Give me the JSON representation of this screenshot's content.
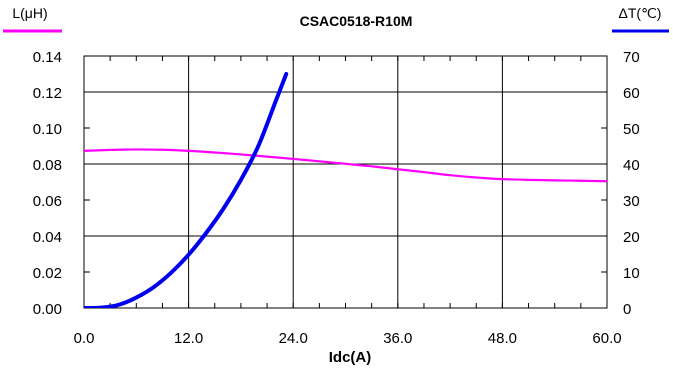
{
  "chart_data": {
    "type": "line",
    "title": "CSAC0518-R10M",
    "xlabel": "Idc(A)",
    "xlim": [
      0,
      60
    ],
    "x_ticks": [
      0,
      12,
      24,
      36,
      48,
      60
    ],
    "x_tick_labels": [
      "0.0",
      "12.0",
      "24.0",
      "36.0",
      "48.0",
      "60.0"
    ],
    "left_axis": {
      "label": "L(μH)",
      "ylim": [
        0,
        0.14
      ],
      "ticks": [
        0,
        0.02,
        0.04,
        0.06,
        0.08,
        0.1,
        0.12,
        0.14
      ],
      "tick_labels": [
        "0.00",
        "0.02",
        "0.04",
        "0.06",
        "0.08",
        "0.10",
        "0.12",
        "0.14"
      ]
    },
    "right_axis": {
      "label": "ΔT(℃)",
      "ylim": [
        0,
        70
      ],
      "ticks": [
        0,
        10,
        20,
        30,
        40,
        50,
        60,
        70
      ],
      "tick_labels": [
        "0",
        "10",
        "20",
        "30",
        "40",
        "50",
        "60",
        "70"
      ]
    },
    "grid": true,
    "series": [
      {
        "name": "L(μH)",
        "axis": "left",
        "color": "#ff00ff",
        "x": [
          0,
          3,
          6,
          9,
          12,
          15,
          18,
          21,
          24,
          27,
          30,
          33,
          36,
          39,
          42,
          45,
          48,
          51,
          54,
          57,
          60
        ],
        "y": [
          0.0873,
          0.0878,
          0.0881,
          0.0879,
          0.0873,
          0.0864,
          0.0853,
          0.0841,
          0.0828,
          0.0815,
          0.0801,
          0.0787,
          0.0771,
          0.0755,
          0.0738,
          0.0725,
          0.0716,
          0.0712,
          0.0709,
          0.0707,
          0.0704
        ]
      },
      {
        "name": "ΔT(℃)",
        "axis": "right",
        "color": "#0000ee",
        "x": [
          0,
          2,
          4,
          6,
          8,
          10,
          12,
          14,
          16,
          18,
          20,
          22
        ],
        "y": [
          0,
          0.1,
          0.9,
          2.9,
          5.8,
          9.8,
          14.8,
          20.8,
          27.6,
          35.6,
          45.0,
          57.5
        ]
      }
    ],
    "colors": {
      "left_axis_line": "#ff00ff",
      "right_axis_line": "#0000ee",
      "grid": "#000000"
    }
  }
}
